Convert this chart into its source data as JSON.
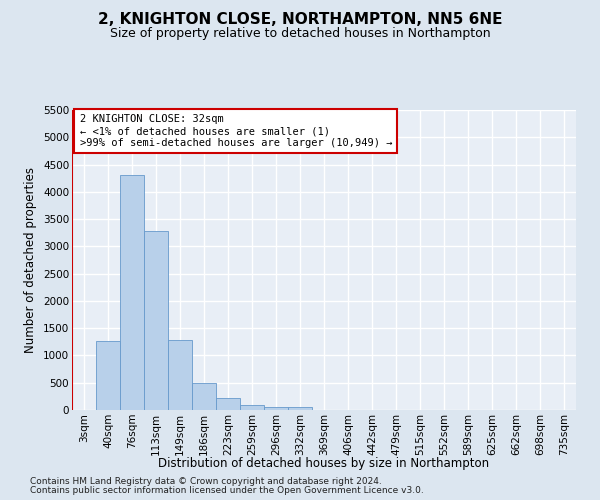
{
  "title": "2, KNIGHTON CLOSE, NORTHAMPTON, NN5 6NE",
  "subtitle": "Size of property relative to detached houses in Northampton",
  "xlabel": "Distribution of detached houses by size in Northampton",
  "ylabel": "Number of detached properties",
  "footer1": "Contains HM Land Registry data © Crown copyright and database right 2024.",
  "footer2": "Contains public sector information licensed under the Open Government Licence v3.0.",
  "bar_labels": [
    "3sqm",
    "40sqm",
    "76sqm",
    "113sqm",
    "149sqm",
    "186sqm",
    "223sqm",
    "259sqm",
    "296sqm",
    "332sqm",
    "369sqm",
    "406sqm",
    "442sqm",
    "479sqm",
    "515sqm",
    "552sqm",
    "589sqm",
    "625sqm",
    "662sqm",
    "698sqm",
    "735sqm"
  ],
  "bar_values": [
    0,
    1270,
    4300,
    3280,
    1280,
    490,
    220,
    90,
    60,
    50,
    0,
    0,
    0,
    0,
    0,
    0,
    0,
    0,
    0,
    0,
    0
  ],
  "bar_color": "#b8d0ea",
  "bar_edge_color": "#6699cc",
  "annotation_text_line1": "2 KNIGHTON CLOSE: 32sqm",
  "annotation_text_line2": "← <1% of detached houses are smaller (1)",
  "annotation_text_line3": ">99% of semi-detached houses are larger (10,949) →",
  "annotation_box_color": "#ffffff",
  "annotation_box_edge_color": "#cc0000",
  "red_line_color": "#cc0000",
  "ylim": [
    0,
    5500
  ],
  "yticks": [
    0,
    500,
    1000,
    1500,
    2000,
    2500,
    3000,
    3500,
    4000,
    4500,
    5000,
    5500
  ],
  "bg_color": "#dce6f0",
  "plot_bg_color": "#e8eef6",
  "grid_color": "#ffffff",
  "title_fontsize": 11,
  "subtitle_fontsize": 9,
  "axis_label_fontsize": 8.5,
  "tick_fontsize": 7.5,
  "annotation_fontsize": 7.5,
  "footer_fontsize": 6.5
}
